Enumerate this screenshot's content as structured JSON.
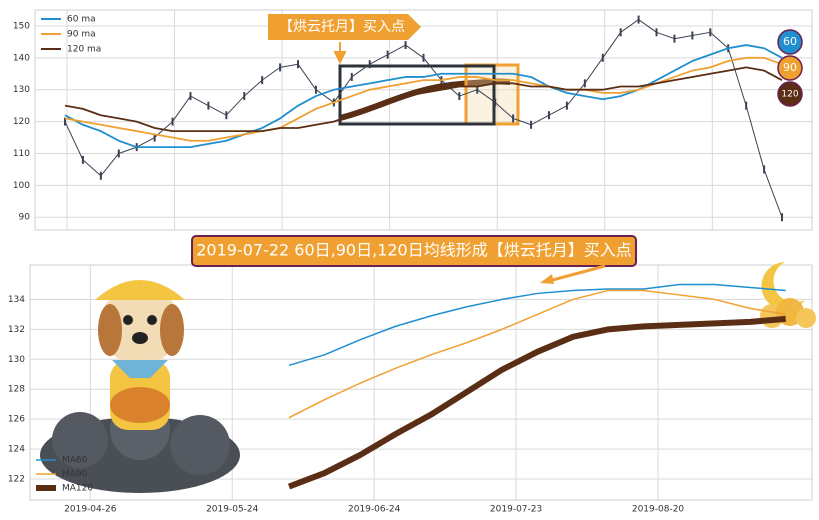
{
  "chart_data": [
    {
      "type": "line",
      "annotation": "【烘云托月】买入点",
      "badges": [
        "60",
        "90",
        "120"
      ],
      "categories": [
        null,
        null,
        null,
        null,
        null,
        null,
        null,
        null,
        null,
        null,
        null,
        null,
        null,
        null,
        null,
        null,
        null,
        null,
        null,
        null,
        null,
        null,
        null,
        null,
        null,
        null,
        null,
        null,
        null,
        null,
        null,
        null,
        null,
        null,
        null,
        null,
        null,
        null,
        null,
        null,
        null
      ],
      "values": [
        120,
        108,
        103,
        110,
        112,
        115,
        120,
        128,
        125,
        122,
        128,
        133,
        137,
        138,
        130,
        126,
        134,
        138,
        141,
        144,
        140,
        133,
        128,
        130,
        126,
        121,
        119,
        122,
        125,
        132,
        140,
        148,
        152,
        148,
        146,
        147,
        148,
        143,
        125,
        105,
        90
      ],
      "color": "#3b4252",
      "series": [
        {
          "name": "60 ma",
          "color": "#1f8fcf",
          "values": [
            122,
            119,
            117,
            114,
            112,
            112,
            112,
            112,
            113,
            114,
            116,
            118,
            121,
            125,
            128,
            130,
            131,
            132,
            133,
            134,
            134,
            135,
            135,
            135,
            135,
            135,
            134,
            131,
            129,
            128,
            127,
            128,
            130,
            133,
            136,
            139,
            141,
            143,
            144,
            143,
            140
          ]
        },
        {
          "name": "90 ma",
          "color": "#f0a030",
          "values": [
            121,
            120,
            119,
            118,
            117,
            116,
            115,
            114,
            114,
            115,
            116,
            117,
            118,
            121,
            124,
            126,
            128,
            130,
            131,
            132,
            133,
            133,
            134,
            134,
            133,
            133,
            132,
            131,
            130,
            130,
            129,
            129,
            130,
            132,
            134,
            136,
            137,
            139,
            140,
            140,
            138
          ]
        },
        {
          "name": "120 ma",
          "color": "#5a2e14",
          "values": [
            125,
            124,
            122,
            121,
            120,
            118,
            117,
            117,
            117,
            117,
            117,
            117,
            118,
            118,
            119,
            120,
            122,
            124,
            126,
            128,
            129,
            130,
            131,
            131,
            132,
            132,
            131,
            131,
            130,
            130,
            130,
            131,
            131,
            132,
            133,
            134,
            135,
            136,
            137,
            136,
            133
          ]
        }
      ],
      "ylim": [
        86,
        155
      ],
      "yticks": [
        90,
        100,
        110,
        120,
        130,
        140,
        150
      ],
      "grid": true,
      "legend": "upper left"
    },
    {
      "type": "line",
      "title": "2019-07-22 60日,90日,120日均线形成【烘云托月】买入点",
      "x": [
        28,
        33,
        38,
        43,
        48,
        53,
        58,
        63,
        68,
        73,
        78,
        83,
        88,
        93,
        98
      ],
      "xlim": [
        -8.5,
        101.7
      ],
      "xticks": [
        {
          "value": 0,
          "label": "2019-04-26"
        },
        {
          "value": 20,
          "label": "2019-05-24"
        },
        {
          "value": 40,
          "label": "2019-06-24"
        },
        {
          "value": 60,
          "label": "2019-07-23"
        },
        {
          "value": 80,
          "label": "2019-08-20"
        }
      ],
      "series": [
        {
          "name": "MA60",
          "color": "#1f8fcf",
          "width": 1.5,
          "values": [
            129.6,
            130.3,
            131.3,
            132.2,
            132.9,
            133.5,
            134.0,
            134.4,
            134.6,
            134.7,
            134.7,
            135.0,
            135.0,
            134.8,
            134.6
          ]
        },
        {
          "name": "MA90",
          "color": "#f0a030",
          "width": 1.5,
          "values": [
            126.1,
            127.3,
            128.4,
            129.4,
            130.3,
            131.1,
            132.0,
            133.0,
            134.0,
            134.6,
            134.6,
            134.3,
            134.0,
            133.4,
            133.0
          ]
        },
        {
          "name": "MA120",
          "color": "#5a2e14",
          "width": 6,
          "values": [
            121.5,
            122.4,
            123.6,
            125.0,
            126.3,
            127.8,
            129.3,
            130.5,
            131.5,
            132.0,
            132.2,
            132.3,
            132.4,
            132.5,
            132.7
          ]
        }
      ],
      "ylim": [
        120.6,
        136.3
      ],
      "yticks": [
        122,
        124,
        126,
        128,
        130,
        132,
        134
      ],
      "grid": true,
      "legend": "lower left"
    }
  ]
}
